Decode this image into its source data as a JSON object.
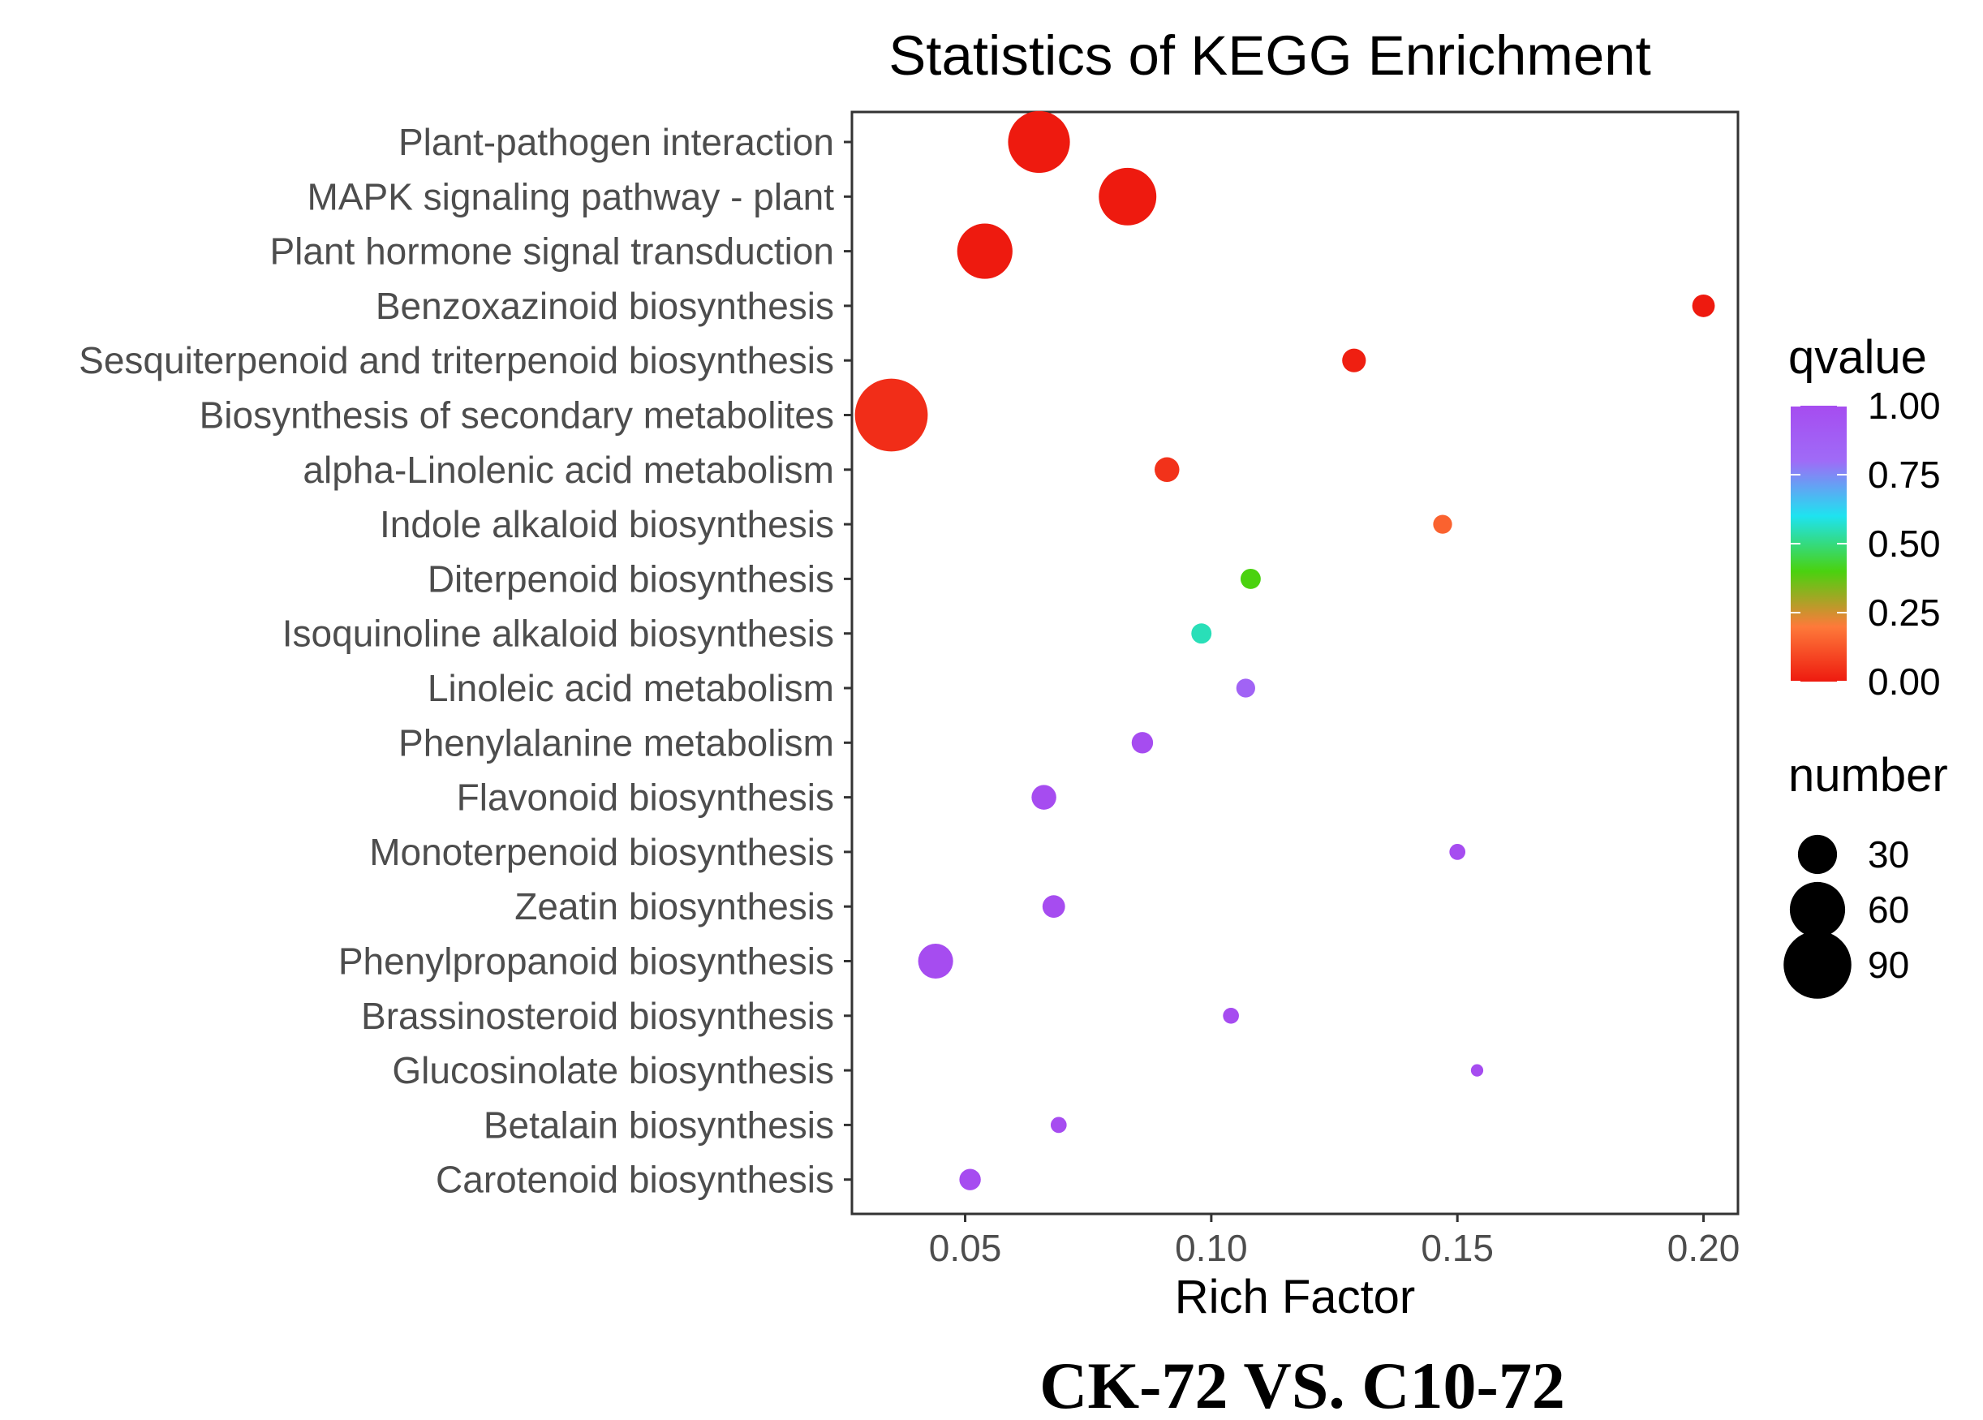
{
  "chart_data": {
    "type": "scatter",
    "title": "Statistics of KEGG Enrichment",
    "xlabel": "Rich Factor",
    "ylabel": "",
    "xlim": [
      0.027,
      0.207
    ],
    "xticks": [
      0.05,
      0.1,
      0.15,
      0.2
    ],
    "xtick_labels": [
      "0.05",
      "0.10",
      "0.15",
      "0.20"
    ],
    "grid": false,
    "caption": "CK-72 VS. C10-72",
    "categories": [
      "Plant-pathogen interaction",
      "MAPK signaling pathway - plant",
      "Plant hormone signal transduction",
      "Benzoxazinoid biosynthesis",
      "Sesquiterpenoid and triterpenoid biosynthesis",
      "Biosynthesis of secondary metabolites",
      "alpha-Linolenic acid metabolism",
      "Indole alkaloid biosynthesis",
      "Diterpenoid biosynthesis",
      "Isoquinoline alkaloid biosynthesis",
      "Linoleic acid metabolism",
      "Phenylalanine metabolism",
      "Flavonoid biosynthesis",
      "Monoterpenoid biosynthesis",
      "Zeatin biosynthesis",
      "Phenylpropanoid biosynthesis",
      "Brassinosteroid biosynthesis",
      "Glucosinolate biosynthesis",
      "Betalain biosynthesis",
      "Carotenoid biosynthesis"
    ],
    "points": [
      {
        "pathway": "Plant-pathogen interaction",
        "rich_factor": 0.065,
        "qvalue": 0.0,
        "number": 75
      },
      {
        "pathway": "MAPK signaling pathway - plant",
        "rich_factor": 0.083,
        "qvalue": 0.0,
        "number": 65
      },
      {
        "pathway": "Plant hormone signal transduction",
        "rich_factor": 0.054,
        "qvalue": 0.0,
        "number": 60
      },
      {
        "pathway": "Benzoxazinoid biosynthesis",
        "rich_factor": 0.2,
        "qvalue": 0.0,
        "number": 10
      },
      {
        "pathway": "Sesquiterpenoid and triterpenoid biosynthesis",
        "rich_factor": 0.129,
        "qvalue": 0.01,
        "number": 11
      },
      {
        "pathway": "Biosynthesis of secondary metabolites",
        "rich_factor": 0.035,
        "qvalue": 0.04,
        "number": 104
      },
      {
        "pathway": "alpha-Linolenic acid metabolism",
        "rich_factor": 0.091,
        "qvalue": 0.05,
        "number": 12
      },
      {
        "pathway": "Indole alkaloid biosynthesis",
        "rich_factor": 0.147,
        "qvalue": 0.15,
        "number": 7
      },
      {
        "pathway": "Diterpenoid biosynthesis",
        "rich_factor": 0.108,
        "qvalue": 0.4,
        "number": 8
      },
      {
        "pathway": "Isoquinoline alkaloid biosynthesis",
        "rich_factor": 0.098,
        "qvalue": 0.55,
        "number": 8
      },
      {
        "pathway": "Linoleic acid metabolism",
        "rich_factor": 0.107,
        "qvalue": 0.85,
        "number": 7
      },
      {
        "pathway": "Phenylalanine metabolism",
        "rich_factor": 0.086,
        "qvalue": 1.0,
        "number": 9
      },
      {
        "pathway": "Flavonoid biosynthesis",
        "rich_factor": 0.066,
        "qvalue": 1.0,
        "number": 12
      },
      {
        "pathway": "Monoterpenoid biosynthesis",
        "rich_factor": 0.15,
        "qvalue": 1.0,
        "number": 5
      },
      {
        "pathway": "Zeatin biosynthesis",
        "rich_factor": 0.068,
        "qvalue": 1.0,
        "number": 10
      },
      {
        "pathway": "Phenylpropanoid biosynthesis",
        "rich_factor": 0.044,
        "qvalue": 1.0,
        "number": 24
      },
      {
        "pathway": "Brassinosteroid biosynthesis",
        "rich_factor": 0.104,
        "qvalue": 1.0,
        "number": 5
      },
      {
        "pathway": "Glucosinolate biosynthesis",
        "rich_factor": 0.154,
        "qvalue": 1.0,
        "number": 3
      },
      {
        "pathway": "Betalain biosynthesis",
        "rich_factor": 0.069,
        "qvalue": 1.0,
        "number": 5
      },
      {
        "pathway": "Carotenoid biosynthesis",
        "rich_factor": 0.051,
        "qvalue": 1.0,
        "number": 9
      }
    ],
    "legend": {
      "color": {
        "title": "qvalue",
        "ticks": [
          1.0,
          0.75,
          0.5,
          0.25,
          0.0
        ],
        "tick_labels": [
          "1.00",
          "0.75",
          "0.50",
          "0.25",
          "0.00"
        ],
        "colors": [
          "#ee1a0f",
          "#fe7a3a",
          "#4ad20f",
          "#1ee3f0",
          "#9f6bf7",
          "#a64cf0"
        ],
        "placement": "right"
      },
      "size": {
        "title": "number",
        "values": [
          30,
          60,
          90
        ],
        "labels": [
          "30",
          "60",
          "90"
        ],
        "placement": "right"
      }
    }
  }
}
